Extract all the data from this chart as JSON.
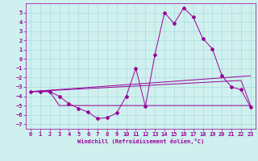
{
  "xlabel": "Windchill (Refroidissement éolien,°C)",
  "background_color": "#cff0ee",
  "grid_color": "#aadddd",
  "line_color": "#990099",
  "xlim": [
    -0.5,
    23.5
  ],
  "ylim": [
    -7.5,
    6.0
  ],
  "xticks": [
    0,
    1,
    2,
    3,
    4,
    5,
    6,
    7,
    8,
    9,
    10,
    11,
    12,
    13,
    14,
    15,
    16,
    17,
    18,
    19,
    20,
    21,
    22,
    23
  ],
  "yticks": [
    -7,
    -6,
    -5,
    -4,
    -3,
    -2,
    -1,
    0,
    1,
    2,
    3,
    4,
    5
  ],
  "series1_x": [
    0,
    1,
    2,
    3,
    4,
    5,
    6,
    7,
    8,
    9,
    10,
    11,
    12,
    13,
    14,
    15,
    16,
    17,
    18,
    19,
    20,
    21,
    22,
    23
  ],
  "series1_y": [
    -3.5,
    -3.5,
    -3.5,
    -4.0,
    -4.8,
    -5.3,
    -5.7,
    -6.4,
    -6.3,
    -5.8,
    -4.0,
    -1.0,
    -5.1,
    0.5,
    5.0,
    3.8,
    5.5,
    4.5,
    2.2,
    1.1,
    -1.8,
    -3.0,
    -3.3,
    -5.2
  ],
  "series2_x": [
    0,
    23
  ],
  "series2_y": [
    -3.5,
    -1.8
  ],
  "series3_x": [
    0,
    22,
    23
  ],
  "series3_y": [
    -3.5,
    -2.3,
    -5.0
  ],
  "series4_x": [
    0,
    2,
    3,
    23
  ],
  "series4_y": [
    -3.5,
    -3.5,
    -5.0,
    -5.0
  ],
  "figwidth": 3.2,
  "figheight": 2.0,
  "dpi": 100
}
